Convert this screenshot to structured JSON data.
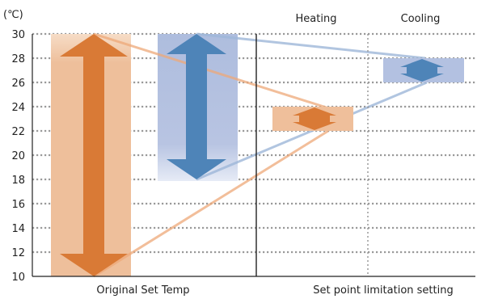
{
  "unit_label": "(℃)",
  "y_axis": {
    "min": 10,
    "max": 30,
    "ticks": [
      "10",
      "12",
      "14",
      "16",
      "18",
      "20",
      "22",
      "24",
      "26",
      "28",
      "30"
    ]
  },
  "columns": {
    "heating": "Heating",
    "cooling": "Cooling"
  },
  "bottom_labels": {
    "left": "Original Set Temp",
    "right": "Set point limitation setting"
  },
  "original_set_temp": {
    "heating_range": [
      10,
      30
    ],
    "cooling_range": [
      18,
      30
    ]
  },
  "set_point_limitation": {
    "heating_range": [
      22,
      24
    ],
    "cooling_range": [
      26,
      28
    ]
  },
  "colors": {
    "heating": "#d97a36",
    "heating_light": "#f0c09a",
    "cooling": "#4e84b8",
    "cooling_light": "#a8b8dc",
    "grid": "#9a9a9a",
    "axis": "#222222"
  }
}
